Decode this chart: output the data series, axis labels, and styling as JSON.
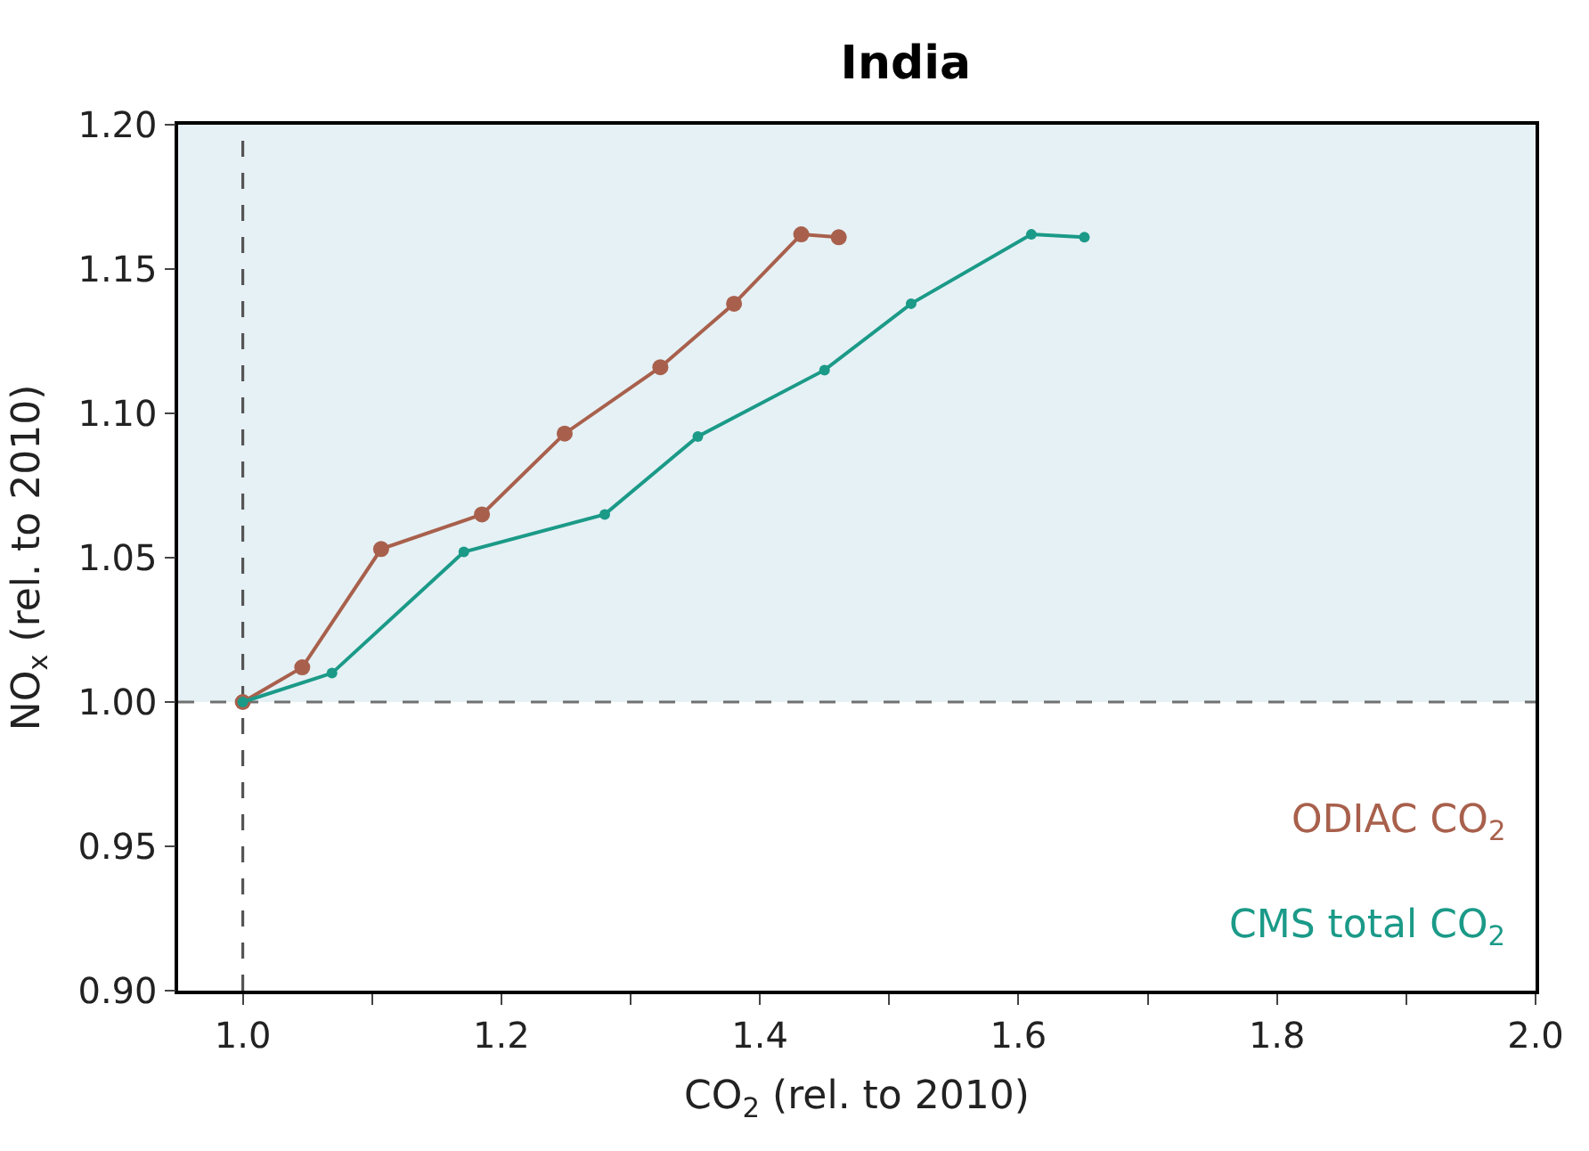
{
  "chart_data": {
    "type": "line",
    "title": "India",
    "xlabel": "CO$_{2}$ (rel. to 2010)",
    "ylabel": "NO$_{x}$ (rel. to 2010)",
    "xlim": [
      0.95,
      2.0
    ],
    "ylim": [
      0.9,
      1.2
    ],
    "xticks": [
      {
        "value": 1.0,
        "label": "1.0"
      },
      {
        "value": 1.1,
        "label": null
      },
      {
        "value": 1.2,
        "label": "1.2"
      },
      {
        "value": 1.3,
        "label": null
      },
      {
        "value": 1.4,
        "label": "1.4"
      },
      {
        "value": 1.5,
        "label": null
      },
      {
        "value": 1.6,
        "label": "1.6"
      },
      {
        "value": 1.7,
        "label": null
      },
      {
        "value": 1.8,
        "label": "1.8"
      },
      {
        "value": 1.9,
        "label": null
      },
      {
        "value": 2.0,
        "label": "2.0"
      }
    ],
    "yticks": [
      {
        "value": 0.9,
        "label": "0.90"
      },
      {
        "value": 0.95,
        "label": "0.95"
      },
      {
        "value": 1.0,
        "label": "1.00"
      },
      {
        "value": 1.05,
        "label": "1.05"
      },
      {
        "value": 1.1,
        "label": "1.10"
      },
      {
        "value": 1.15,
        "label": "1.15"
      },
      {
        "value": 1.2,
        "label": "1.20"
      }
    ],
    "marker": "circle",
    "line_style": "solid",
    "grid": false,
    "legend": "bottom right",
    "series": [
      {
        "name": "ODIAC CO$_{2}$",
        "color": "#a8604c",
        "x": [
          1.0,
          1.046,
          1.107,
          1.185,
          1.249,
          1.323,
          1.38,
          1.432,
          1.461
        ],
        "values": [
          1.0,
          1.012,
          1.053,
          1.065,
          1.093,
          1.116,
          1.138,
          1.162,
          1.161
        ]
      },
      {
        "name": "CMS total CO$_{2}$",
        "color": "#1b9a88",
        "x": [
          1.0,
          1.069,
          1.171,
          1.28,
          1.352,
          1.45,
          1.517,
          1.61,
          1.651
        ],
        "values": [
          1.0,
          1.01,
          1.052,
          1.065,
          1.092,
          1.115,
          1.138,
          1.162,
          1.161
        ]
      }
    ],
    "ref_lines": [
      {
        "axis": "x",
        "value": 1.0,
        "color": "#555555",
        "line_style": "dashed"
      },
      {
        "axis": "y",
        "value": 1.0,
        "color": "#707070",
        "line_style": "dashed"
      }
    ],
    "bands": [
      {
        "axis": "y",
        "from": 1.0,
        "to": 1.2,
        "color": "#e6f1f5"
      }
    ]
  }
}
